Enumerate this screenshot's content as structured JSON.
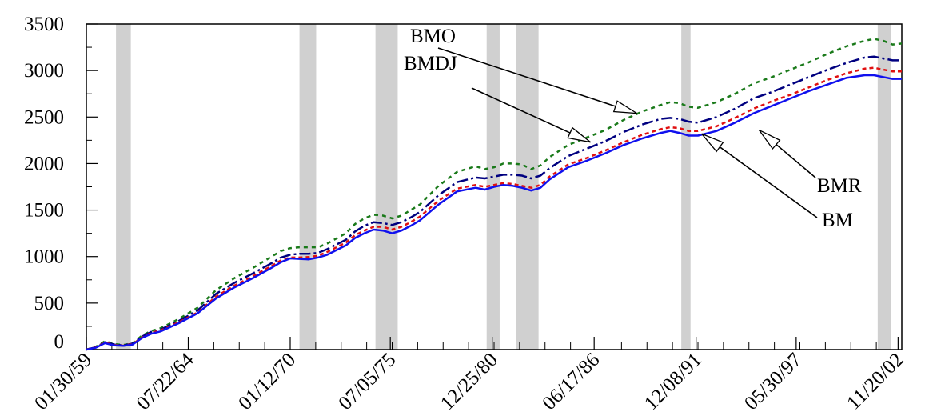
{
  "chart_data": {
    "type": "line",
    "title": "",
    "xlabel": "",
    "ylabel": "",
    "xlim": [
      0,
      44
    ],
    "ylim": [
      0,
      3500
    ],
    "yticks": [
      0,
      500,
      1000,
      1500,
      2000,
      2500,
      3000,
      3500
    ],
    "xtick_labels": [
      {
        "x": 0,
        "label": "01/30/59"
      },
      {
        "x": 5.5,
        "label": "07/22/64"
      },
      {
        "x": 11,
        "label": "01/12/70"
      },
      {
        "x": 16.4,
        "label": "07/05/75"
      },
      {
        "x": 21.9,
        "label": "12/25/80"
      },
      {
        "x": 27.4,
        "label": "06/17/86"
      },
      {
        "x": 32.9,
        "label": "12/08/91"
      },
      {
        "x": 38.3,
        "label": "05/30/97"
      },
      {
        "x": 43.8,
        "label": "11/20/02"
      }
    ],
    "recessions": [
      [
        1.6,
        2.4
      ],
      [
        11.5,
        12.4
      ],
      [
        15.6,
        16.8
      ],
      [
        21.6,
        22.3
      ],
      [
        23.2,
        24.4
      ],
      [
        32.1,
        32.6
      ],
      [
        42.7,
        43.4
      ]
    ],
    "series": [
      {
        "name": "BMO",
        "color": "#1a7a1a",
        "dash": "5,5",
        "x": [
          0,
          0.5,
          1,
          1.5,
          2,
          2.5,
          3,
          3.5,
          4,
          5,
          6,
          7,
          8,
          9,
          10,
          10.5,
          11,
          11.5,
          12,
          12.5,
          13,
          14,
          14.5,
          15,
          15.5,
          16,
          16.5,
          17,
          17.5,
          18,
          19,
          20,
          21,
          21.5,
          22,
          22.5,
          23,
          23.5,
          24,
          24.5,
          25,
          26,
          27,
          28,
          29,
          30,
          31,
          31.5,
          32,
          32.5,
          33,
          34,
          35,
          36,
          37,
          38,
          39,
          40,
          41,
          42,
          42.5,
          43,
          43.5,
          44
        ],
        "y": [
          0,
          30,
          90,
          60,
          50,
          70,
          150,
          200,
          230,
          330,
          450,
          640,
          770,
          880,
          1000,
          1060,
          1090,
          1100,
          1100,
          1100,
          1140,
          1250,
          1350,
          1410,
          1450,
          1440,
          1410,
          1440,
          1500,
          1560,
          1760,
          1910,
          1970,
          1940,
          1960,
          2000,
          2000,
          1990,
          1940,
          1980,
          2070,
          2200,
          2280,
          2360,
          2470,
          2560,
          2630,
          2660,
          2650,
          2610,
          2600,
          2660,
          2750,
          2860,
          2930,
          3010,
          3090,
          3180,
          3260,
          3320,
          3340,
          3320,
          3280,
          3290
        ]
      },
      {
        "name": "BMDJ",
        "color": "#000080",
        "dash": "14,4,3,4",
        "x": [
          0,
          0.5,
          1,
          1.5,
          2,
          2.5,
          3,
          3.5,
          4,
          5,
          6,
          7,
          8,
          9,
          10,
          10.5,
          11,
          11.5,
          12,
          12.5,
          13,
          14,
          14.5,
          15,
          15.5,
          16,
          16.5,
          17,
          17.5,
          18,
          19,
          20,
          21,
          21.5,
          22,
          22.5,
          23,
          23.5,
          24,
          24.5,
          25,
          26,
          27,
          28,
          29,
          30,
          31,
          31.5,
          32,
          32.5,
          33,
          34,
          35,
          36,
          37,
          38,
          39,
          40,
          41,
          42,
          42.5,
          43,
          43.5,
          44
        ],
        "y": [
          0,
          25,
          80,
          55,
          45,
          65,
          140,
          190,
          215,
          310,
          420,
          600,
          720,
          820,
          930,
          990,
          1020,
          1030,
          1030,
          1040,
          1080,
          1180,
          1270,
          1330,
          1370,
          1360,
          1340,
          1370,
          1420,
          1480,
          1660,
          1800,
          1850,
          1840,
          1860,
          1880,
          1880,
          1870,
          1840,
          1870,
          1950,
          2080,
          2160,
          2240,
          2340,
          2420,
          2480,
          2490,
          2480,
          2450,
          2440,
          2500,
          2590,
          2700,
          2770,
          2850,
          2930,
          3010,
          3080,
          3140,
          3150,
          3130,
          3110,
          3110
        ]
      },
      {
        "name": "BMR",
        "color": "#e01010",
        "dash": "5,4",
        "x": [
          0,
          0.5,
          1,
          1.5,
          2,
          2.5,
          3,
          3.5,
          4,
          5,
          6,
          7,
          8,
          9,
          10,
          10.5,
          11,
          11.5,
          12,
          12.5,
          13,
          14,
          14.5,
          15,
          15.5,
          16,
          16.5,
          17,
          17.5,
          18,
          19,
          20,
          21,
          21.5,
          22,
          22.5,
          23,
          23.5,
          24,
          24.5,
          25,
          26,
          27,
          28,
          29,
          30,
          31,
          31.5,
          32,
          32.5,
          33,
          34,
          35,
          36,
          37,
          38,
          39,
          40,
          41,
          42,
          42.5,
          43,
          43.5,
          44
        ],
        "y": [
          0,
          22,
          75,
          50,
          42,
          60,
          130,
          180,
          205,
          295,
          400,
          570,
          690,
          790,
          900,
          960,
          990,
          990,
          995,
          1010,
          1050,
          1150,
          1230,
          1280,
          1320,
          1320,
          1290,
          1320,
          1370,
          1430,
          1600,
          1730,
          1770,
          1750,
          1770,
          1790,
          1780,
          1760,
          1740,
          1770,
          1860,
          1990,
          2060,
          2140,
          2230,
          2310,
          2370,
          2390,
          2380,
          2350,
          2350,
          2400,
          2490,
          2590,
          2670,
          2740,
          2820,
          2900,
          2970,
          3020,
          3030,
          3010,
          2990,
          2990
        ]
      },
      {
        "name": "BM",
        "color": "#1010ee",
        "dash": "",
        "x": [
          0,
          0.5,
          1,
          1.5,
          2,
          2.5,
          3,
          3.5,
          4,
          5,
          6,
          7,
          8,
          9,
          10,
          10.5,
          11,
          11.5,
          12,
          12.5,
          13,
          14,
          14.5,
          15,
          15.5,
          16,
          16.5,
          17,
          17.5,
          18,
          19,
          20,
          21,
          21.5,
          22,
          22.5,
          23,
          23.5,
          24,
          24.5,
          25,
          26,
          27,
          28,
          29,
          30,
          31,
          31.5,
          32,
          32.5,
          33,
          34,
          35,
          36,
          37,
          38,
          39,
          40,
          41,
          42,
          42.5,
          43,
          43.5,
          44
        ],
        "y": [
          0,
          20,
          70,
          45,
          40,
          55,
          125,
          170,
          195,
          285,
          390,
          550,
          670,
          770,
          880,
          940,
          980,
          975,
          970,
          990,
          1020,
          1120,
          1200,
          1250,
          1290,
          1280,
          1250,
          1280,
          1330,
          1390,
          1560,
          1700,
          1740,
          1720,
          1750,
          1770,
          1760,
          1740,
          1710,
          1740,
          1830,
          1960,
          2030,
          2110,
          2200,
          2270,
          2330,
          2350,
          2330,
          2300,
          2300,
          2350,
          2440,
          2540,
          2620,
          2700,
          2780,
          2850,
          2920,
          2950,
          2950,
          2930,
          2910,
          2910
        ]
      }
    ],
    "annotations": [
      {
        "text": "BMO",
        "x_point": 29.7,
        "y_point": 2540
      },
      {
        "text": "BMDJ",
        "x_point": 27.2,
        "y_point": 2230
      },
      {
        "text": "BMR",
        "x_point": 36.3,
        "y_point": 2360
      },
      {
        "text": "BM",
        "x_point": 33.2,
        "y_point": 2320
      }
    ]
  }
}
